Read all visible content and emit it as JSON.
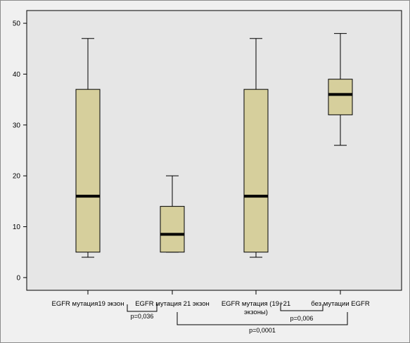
{
  "chart_data": {
    "type": "boxplot",
    "title": "",
    "xlabel": "",
    "ylabel": "",
    "ylim": [
      -2.5,
      52.5
    ],
    "yticks": [
      0,
      10,
      20,
      30,
      40,
      50
    ],
    "grid": false,
    "colors": {
      "box_fill": "#d6cf9c",
      "box_stroke": "#000000",
      "plot_background": "#e6e6e6",
      "median": "#000000"
    },
    "categories": [
      [
        "EGFR мутация19 экзон"
      ],
      [
        "EGFR мутация 21 экзон"
      ],
      [
        "EGFR мутация (19+21",
        "экзоны)"
      ],
      [
        "без мутации EGFR"
      ]
    ],
    "boxes": [
      {
        "whisker_low": 4,
        "q1": 5,
        "median": 16,
        "q3": 37,
        "whisker_high": 47
      },
      {
        "whisker_low": 5,
        "q1": 5,
        "median": 8.5,
        "q3": 14,
        "whisker_high": 20
      },
      {
        "whisker_low": 4,
        "q1": 5,
        "median": 16,
        "q3": 37,
        "whisker_high": 47
      },
      {
        "whisker_low": 26,
        "q1": 32,
        "median": 36,
        "q3": 39,
        "whisker_high": 48
      }
    ],
    "annotations": [
      {
        "from": 0,
        "to": 1,
        "label": "p=0,036"
      },
      {
        "from": 2,
        "to": 3,
        "label": "p=0,006"
      },
      {
        "from": 1,
        "to": 3,
        "label": "p=0,0001"
      }
    ]
  }
}
